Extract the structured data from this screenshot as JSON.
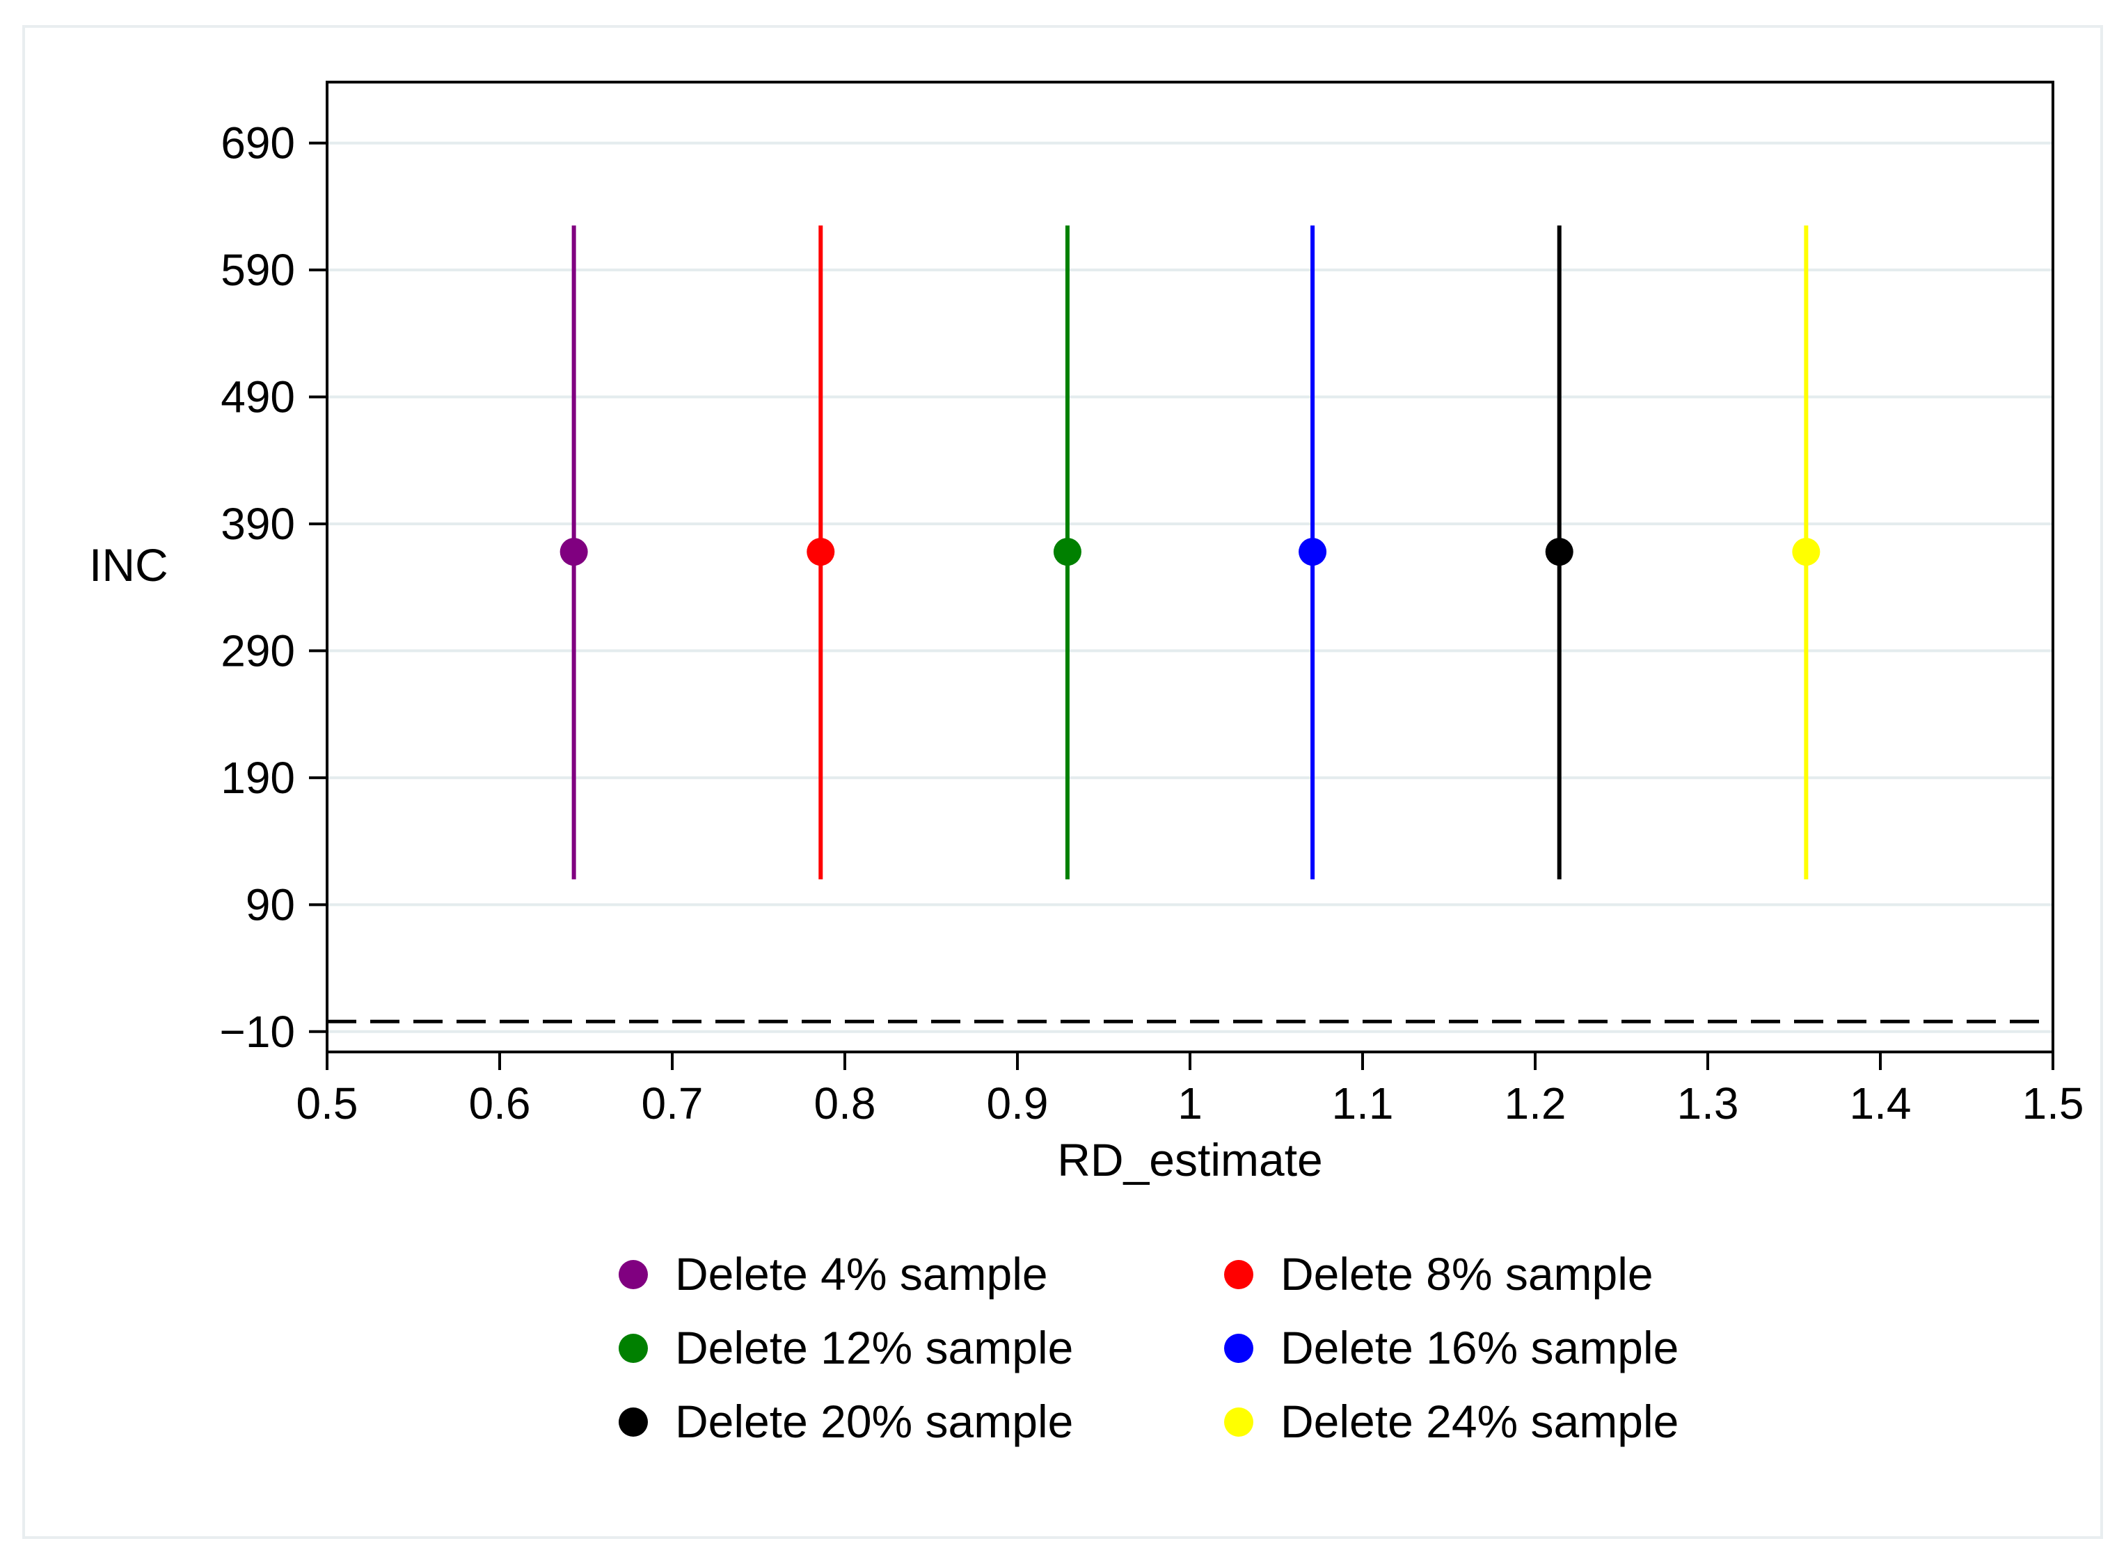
{
  "chart_data": {
    "type": "scatter",
    "title": "",
    "xlabel": "RD_estimate",
    "ylabel": "INC",
    "xlim": [
      0.5,
      1.5
    ],
    "ylim": [
      -26,
      738
    ],
    "x_ticks": [
      0.5,
      0.6,
      0.7,
      0.8,
      0.9,
      1,
      1.1,
      1.2,
      1.3,
      1.4,
      1.5
    ],
    "x_tick_labels": [
      "0.5",
      "0.6",
      "0.7",
      "0.8",
      "0.9",
      "1",
      "1.1",
      "1.2",
      "1.3",
      "1.4",
      "1.5"
    ],
    "y_ticks": [
      -10,
      90,
      190,
      290,
      390,
      490,
      590,
      690
    ],
    "y_tick_labels": [
      "−10",
      "90",
      "190",
      "290",
      "390",
      "490",
      "590",
      "690"
    ],
    "grid": true,
    "reference_line": {
      "y": -2,
      "style": "dashed"
    },
    "series": [
      {
        "name": "Delete 4% sample",
        "color": "#800080",
        "x": 0.643,
        "y": 368,
        "y_low": 110,
        "y_high": 625
      },
      {
        "name": "Delete 8% sample",
        "color": "#ff0000",
        "x": 0.786,
        "y": 368,
        "y_low": 110,
        "y_high": 625
      },
      {
        "name": "Delete 12% sample",
        "color": "#008000",
        "x": 0.929,
        "y": 368,
        "y_low": 110,
        "y_high": 625
      },
      {
        "name": "Delete 16% sample",
        "color": "#0000ff",
        "x": 1.071,
        "y": 368,
        "y_low": 110,
        "y_high": 625
      },
      {
        "name": "Delete 20% sample",
        "color": "#000000",
        "x": 1.214,
        "y": 368,
        "y_low": 110,
        "y_high": 625
      },
      {
        "name": "Delete 24% sample",
        "color": "#ffff00",
        "x": 1.357,
        "y": 368,
        "y_low": 110,
        "y_high": 625
      }
    ],
    "legend_position": "bottom"
  }
}
